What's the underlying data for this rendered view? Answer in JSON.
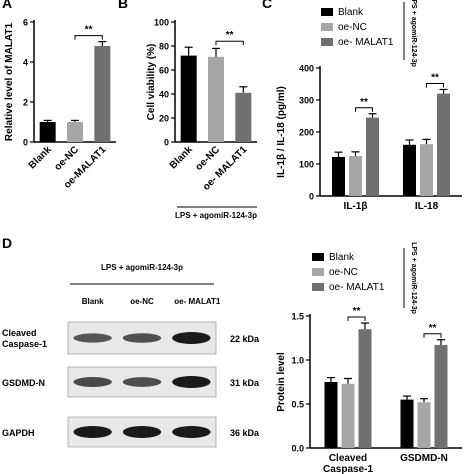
{
  "panels": {
    "a": {
      "letter": "A"
    },
    "b": {
      "letter": "B"
    },
    "c": {
      "letter": "C"
    },
    "d": {
      "letter": "D"
    }
  },
  "colors": {
    "blank": "#000000",
    "oe_nc": "#a6a6a6",
    "oe_malat1": "#707070",
    "gel_bg": "#e8e8e8",
    "band": "#1a1a1a"
  },
  "chart_data": [
    {
      "id": "panel-a",
      "type": "bar",
      "categories": [
        "Blank",
        "oe-NC",
        "oe-MALAT1"
      ],
      "values": [
        1.0,
        1.0,
        4.8
      ],
      "errors": [
        0.08,
        0.08,
        0.22
      ],
      "ylabel": "Relative level of MALAT1",
      "ylim": [
        0,
        6
      ],
      "yticks": [
        "0",
        "2",
        "4",
        "6"
      ],
      "significance": [
        {
          "from": 1,
          "to": 2,
          "label": "**"
        }
      ]
    },
    {
      "id": "panel-b",
      "type": "bar",
      "categories": [
        "Blank",
        "oe-NC",
        "oe- MALAT1"
      ],
      "values": [
        72,
        71,
        41
      ],
      "errors": [
        7,
        7,
        5
      ],
      "ylabel": "Cell viability (%)",
      "ylim": [
        0,
        100
      ],
      "yticks": [
        "0",
        "20",
        "40",
        "60",
        "80",
        "100"
      ],
      "significance": [
        {
          "from": 1,
          "to": 2,
          "label": "**"
        }
      ],
      "bracket_label": "LPS + agomiR-124-3p"
    },
    {
      "id": "panel-c",
      "type": "bar",
      "categories": [
        "IL-1β",
        "IL-18"
      ],
      "series": [
        {
          "name": "Blank",
          "values": [
            122,
            160
          ],
          "errors": [
            15,
            15
          ]
        },
        {
          "name": "oe-NC",
          "values": [
            125,
            162
          ],
          "errors": [
            13,
            15
          ]
        },
        {
          "name": "oe- MALAT1",
          "values": [
            245,
            320
          ],
          "errors": [
            12,
            13
          ]
        }
      ],
      "ylabel": "IL-1β / IL-18  (pg/ml)",
      "ylim": [
        0,
        400
      ],
      "yticks": [
        "0",
        "100",
        "200",
        "300",
        "400"
      ],
      "significance": [
        {
          "category": 0,
          "label": "**"
        },
        {
          "category": 1,
          "label": "**"
        }
      ],
      "bracket_label": "LPS + agomiR-124-3p"
    },
    {
      "id": "panel-d-blot",
      "type": "table",
      "header": "LPS + agomiR-124-3p",
      "columns": [
        "Blank",
        "oe-NC",
        "oe- MALAT1"
      ],
      "rows": [
        {
          "label": "Cleaved\nCaspase-1",
          "size": "22 kDa",
          "intensity": [
            0.55,
            0.6,
            1.0
          ]
        },
        {
          "label": "GSDMD-N",
          "size": "31 kDa",
          "intensity": [
            0.65,
            0.62,
            1.0
          ]
        },
        {
          "label": "GAPDH",
          "size": "36 kDa",
          "intensity": [
            1.0,
            1.0,
            1.0
          ]
        }
      ]
    },
    {
      "id": "panel-d-chart",
      "type": "bar",
      "categories": [
        "Cleaved\nCaspase-1",
        "GSDMD-N"
      ],
      "series": [
        {
          "name": "Blank",
          "values": [
            0.75,
            0.55
          ],
          "errors": [
            0.05,
            0.04
          ]
        },
        {
          "name": "oe-NC",
          "values": [
            0.73,
            0.52
          ],
          "errors": [
            0.06,
            0.04
          ]
        },
        {
          "name": "oe- MALAT1",
          "values": [
            1.35,
            1.17
          ],
          "errors": [
            0.07,
            0.06
          ]
        }
      ],
      "ylabel": "Protein level",
      "ylim": [
        0,
        1.5
      ],
      "yticks": [
        "0.0",
        "0.5",
        "1.0",
        "1.5"
      ],
      "significance": [
        {
          "category": 0,
          "label": "**"
        },
        {
          "category": 1,
          "label": "**"
        }
      ],
      "bracket_label": "LPS + agomiR-124-3p"
    }
  ]
}
